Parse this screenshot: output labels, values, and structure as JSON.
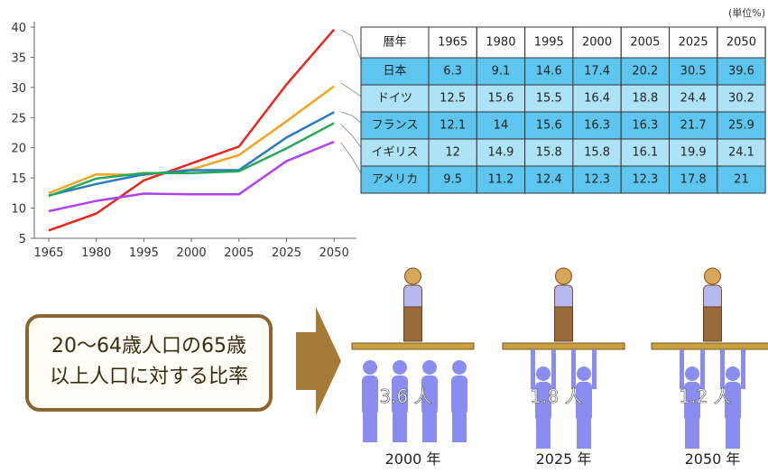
{
  "chart_data": {
    "type": "line",
    "categories": [
      "1965",
      "1980",
      "1995",
      "2000",
      "2005",
      "2025",
      "2050"
    ],
    "series": [
      {
        "name": "日本",
        "color": "#e8261e",
        "values": [
          6.3,
          9.1,
          14.6,
          17.4,
          20.2,
          30.5,
          39.6
        ]
      },
      {
        "name": "ドイツ",
        "color": "#f5a420",
        "values": [
          12.5,
          15.6,
          15.5,
          16.4,
          18.8,
          24.4,
          30.2
        ]
      },
      {
        "name": "フランス",
        "color": "#2a7cc0",
        "values": [
          12.1,
          14.0,
          15.6,
          16.3,
          16.3,
          21.7,
          25.9
        ]
      },
      {
        "name": "イギリス",
        "color": "#27a85a",
        "values": [
          12.0,
          14.9,
          15.8,
          15.8,
          16.1,
          19.9,
          24.1
        ]
      },
      {
        "name": "アメリカ",
        "color": "#b040f0",
        "values": [
          9.5,
          11.2,
          12.4,
          12.3,
          12.3,
          17.8,
          21.0
        ]
      }
    ],
    "ylim": [
      5,
      40
    ],
    "yticks": [
      5,
      10,
      15,
      20,
      25,
      30,
      35,
      40
    ]
  },
  "table": {
    "unit": "(単位%)",
    "corner": "暦年"
  },
  "ratio": {
    "caption": [
      "20〜64歳人口の65歳",
      "以上人口に対する比率"
    ],
    "panels": [
      {
        "value": "3.6 人",
        "year": "2000 年"
      },
      {
        "value": "1.8 人",
        "year": "2025 年"
      },
      {
        "value": "1.2 人",
        "year": "2050 年"
      }
    ]
  }
}
